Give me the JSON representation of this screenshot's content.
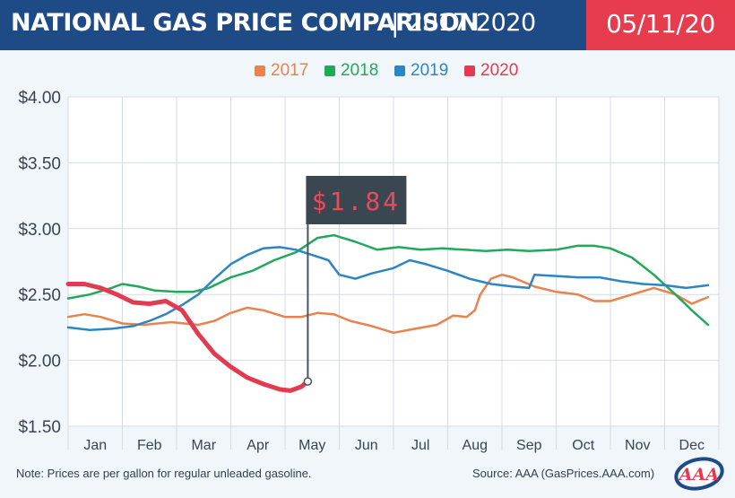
{
  "header": {
    "title": "NATIONAL GAS PRICE COMPARISON",
    "separator": "|",
    "years": "2017-2020",
    "date": "05/11/20",
    "bg_color": "#1e4a86",
    "date_bg_color": "#e73c4e"
  },
  "footer": {
    "note": "Note: Prices are per gallon for regular unleaded gasoline.",
    "source": "Source: AAA (GasPrices.AAA.com)",
    "logo_text": "AAA"
  },
  "chart_data": {
    "type": "line",
    "title": "NATIONAL GAS PRICE COMPARISON | 2017-2020",
    "ylim": [
      1.5,
      4.0
    ],
    "y_ticks": [
      "$4.00",
      "$3.50",
      "$3.00",
      "$2.50",
      "$2.00",
      "$1.50"
    ],
    "y_tick_values": [
      4.0,
      3.5,
      3.0,
      2.5,
      2.0,
      1.5
    ],
    "categories": [
      "Jan",
      "Feb",
      "Mar",
      "Apr",
      "May",
      "Jun",
      "Jul",
      "Aug",
      "Sep",
      "Oct",
      "Nov",
      "Dec"
    ],
    "xlim": [
      0,
      12
    ],
    "grid": true,
    "legend_position": "top-center",
    "annotation": {
      "label": "$1.84",
      "x": 4.42,
      "y": 1.84
    },
    "series": [
      {
        "name": "2017",
        "color": "#e8834f",
        "x": [
          0,
          0.3,
          0.6,
          1,
          1.4,
          1.9,
          2.4,
          2.7,
          3.0,
          3.3,
          3.6,
          4.0,
          4.3,
          4.6,
          4.9,
          5.2,
          5.6,
          6.0,
          6.4,
          6.8,
          7.1,
          7.35,
          7.5,
          7.6,
          7.8,
          8.0,
          8.2,
          8.6,
          9.0,
          9.4,
          9.7,
          10.0,
          10.4,
          10.8,
          11.2,
          11.5,
          11.8
        ],
        "values": [
          2.33,
          2.35,
          2.33,
          2.28,
          2.27,
          2.29,
          2.27,
          2.3,
          2.36,
          2.4,
          2.38,
          2.33,
          2.33,
          2.36,
          2.35,
          2.3,
          2.26,
          2.21,
          2.24,
          2.27,
          2.34,
          2.33,
          2.38,
          2.5,
          2.62,
          2.65,
          2.63,
          2.56,
          2.52,
          2.5,
          2.45,
          2.45,
          2.5,
          2.55,
          2.5,
          2.43,
          2.48
        ]
      },
      {
        "name": "2018",
        "color": "#21a95a",
        "x": [
          0,
          0.4,
          0.8,
          1.0,
          1.3,
          1.6,
          2.0,
          2.3,
          2.6,
          3.0,
          3.4,
          3.8,
          4.2,
          4.6,
          4.9,
          5.3,
          5.7,
          6.1,
          6.5,
          6.9,
          7.3,
          7.7,
          8.1,
          8.5,
          9.0,
          9.4,
          9.7,
          10.0,
          10.4,
          10.8,
          11.2,
          11.5,
          11.8
        ],
        "values": [
          2.47,
          2.5,
          2.55,
          2.58,
          2.56,
          2.53,
          2.52,
          2.52,
          2.55,
          2.63,
          2.68,
          2.76,
          2.82,
          2.93,
          2.95,
          2.9,
          2.84,
          2.86,
          2.84,
          2.85,
          2.84,
          2.83,
          2.84,
          2.83,
          2.84,
          2.87,
          2.87,
          2.85,
          2.78,
          2.65,
          2.5,
          2.38,
          2.27
        ]
      },
      {
        "name": "2019",
        "color": "#2d86c4",
        "x": [
          0,
          0.4,
          0.8,
          1.2,
          1.5,
          1.8,
          2.1,
          2.4,
          2.7,
          3.0,
          3.3,
          3.6,
          3.9,
          4.2,
          4.5,
          4.8,
          5.0,
          5.3,
          5.6,
          6.0,
          6.3,
          6.6,
          7.0,
          7.4,
          7.8,
          8.2,
          8.5,
          8.6,
          9.0,
          9.4,
          9.8,
          10.2,
          10.6,
          11.0,
          11.4,
          11.8
        ],
        "values": [
          2.25,
          2.23,
          2.24,
          2.26,
          2.3,
          2.35,
          2.42,
          2.5,
          2.62,
          2.73,
          2.8,
          2.85,
          2.86,
          2.84,
          2.8,
          2.76,
          2.65,
          2.62,
          2.66,
          2.7,
          2.76,
          2.73,
          2.68,
          2.62,
          2.58,
          2.56,
          2.55,
          2.65,
          2.64,
          2.63,
          2.63,
          2.6,
          2.58,
          2.57,
          2.55,
          2.57
        ]
      },
      {
        "name": "2020",
        "color": "#e23b50",
        "x": [
          0,
          0.3,
          0.6,
          0.9,
          1.2,
          1.5,
          1.8,
          2.1,
          2.4,
          2.7,
          3.0,
          3.3,
          3.6,
          3.9,
          4.1,
          4.3,
          4.42
        ],
        "values": [
          2.58,
          2.58,
          2.55,
          2.5,
          2.44,
          2.43,
          2.45,
          2.38,
          2.2,
          2.05,
          1.95,
          1.87,
          1.82,
          1.78,
          1.77,
          1.8,
          1.84
        ]
      }
    ]
  }
}
